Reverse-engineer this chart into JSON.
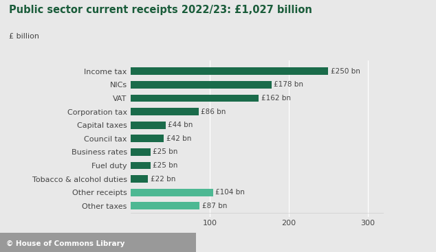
{
  "title": "Public sector current receipts 2022/23: £1,027 billion",
  "ylabel_text": "£ billion",
  "footer": "© House of Commons Library",
  "categories": [
    "Income tax",
    "NICs",
    "VAT",
    "Corporation tax",
    "Capital taxes",
    "Council tax",
    "Business rates",
    "Fuel duty",
    "Tobacco & alcohol duties",
    "Other receipts",
    "Other taxes"
  ],
  "values": [
    250,
    178,
    162,
    86,
    44,
    42,
    25,
    25,
    22,
    104,
    87
  ],
  "labels": [
    "£250 bn",
    "£178 bn",
    "£162 bn",
    "£86 bn",
    "£44 bn",
    "£42 bn",
    "£25 bn",
    "£25 bn",
    "£22 bn",
    "£104 bn",
    "£87 bn"
  ],
  "bar_colors": [
    "#1a6b4a",
    "#1a6b4a",
    "#1a6b4a",
    "#1a6b4a",
    "#1a6b4a",
    "#1a6b4a",
    "#1a6b4a",
    "#1a6b4a",
    "#1a6b4a",
    "#4db893",
    "#4db893"
  ],
  "background_color": "#e8e8e8",
  "title_color": "#1a5c3a",
  "text_color": "#444444",
  "footer_bg_color": "#999999",
  "footer_text_color": "#ffffff",
  "xlim": [
    0,
    320
  ],
  "xticks": [
    100,
    200,
    300
  ]
}
